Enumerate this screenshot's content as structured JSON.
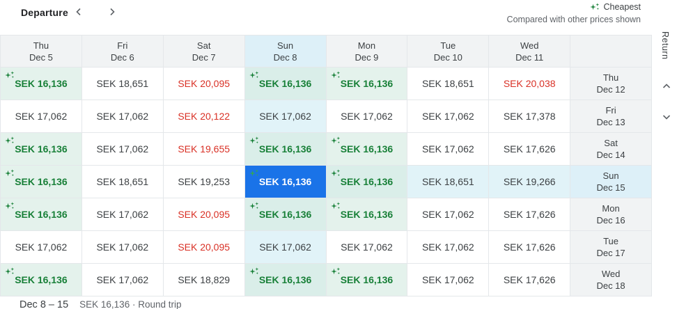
{
  "colors": {
    "accent_blue": "#1a73e8",
    "cheapest_green_text": "#188038",
    "high_red_text": "#d93025",
    "cheapest_bg": "#e4f2ec",
    "highlight_bg": "#e1f3f8",
    "header_bg": "#f1f3f4"
  },
  "toolbar": {
    "departure_label": "Departure"
  },
  "legend": {
    "cheapest_label": "Cheapest",
    "note": "Compared with other prices shown"
  },
  "return_axis": {
    "label": "Return"
  },
  "columns": [
    {
      "day": "Thu",
      "date": "Dec 5",
      "selected": false
    },
    {
      "day": "Fri",
      "date": "Dec 6",
      "selected": false
    },
    {
      "day": "Sat",
      "date": "Dec 7",
      "selected": false
    },
    {
      "day": "Sun",
      "date": "Dec 8",
      "selected": true
    },
    {
      "day": "Mon",
      "date": "Dec 9",
      "selected": false
    },
    {
      "day": "Tue",
      "date": "Dec 10",
      "selected": false
    },
    {
      "day": "Wed",
      "date": "Dec 11",
      "selected": false
    }
  ],
  "rows": [
    {
      "day": "Thu",
      "date": "Dec 12",
      "selected": false
    },
    {
      "day": "Fri",
      "date": "Dec 13",
      "selected": false
    },
    {
      "day": "Sat",
      "date": "Dec 14",
      "selected": false
    },
    {
      "day": "Sun",
      "date": "Dec 15",
      "selected": true
    },
    {
      "day": "Mon",
      "date": "Dec 16",
      "selected": false
    },
    {
      "day": "Tue",
      "date": "Dec 17",
      "selected": false
    },
    {
      "day": "Wed",
      "date": "Dec 18",
      "selected": false
    }
  ],
  "grid": [
    [
      {
        "price": "SEK 16,136",
        "style": "cheapest",
        "highlight": false
      },
      {
        "price": "SEK 18,651",
        "style": "normal",
        "highlight": false
      },
      {
        "price": "SEK 20,095",
        "style": "high",
        "highlight": false
      },
      {
        "price": "SEK 16,136",
        "style": "cheapest",
        "highlight": true
      },
      {
        "price": "SEK 16,136",
        "style": "cheapest",
        "highlight": false
      },
      {
        "price": "SEK 18,651",
        "style": "normal",
        "highlight": false
      },
      {
        "price": "SEK 20,038",
        "style": "high",
        "highlight": false
      }
    ],
    [
      {
        "price": "SEK 17,062",
        "style": "normal",
        "highlight": false
      },
      {
        "price": "SEK 17,062",
        "style": "normal",
        "highlight": false
      },
      {
        "price": "SEK 20,122",
        "style": "high",
        "highlight": false
      },
      {
        "price": "SEK 17,062",
        "style": "normal",
        "highlight": true
      },
      {
        "price": "SEK 17,062",
        "style": "normal",
        "highlight": false
      },
      {
        "price": "SEK 17,062",
        "style": "normal",
        "highlight": false
      },
      {
        "price": "SEK 17,378",
        "style": "normal",
        "highlight": false
      }
    ],
    [
      {
        "price": "SEK 16,136",
        "style": "cheapest",
        "highlight": false
      },
      {
        "price": "SEK 17,062",
        "style": "normal",
        "highlight": false
      },
      {
        "price": "SEK 19,655",
        "style": "high",
        "highlight": false
      },
      {
        "price": "SEK 16,136",
        "style": "cheapest",
        "highlight": true
      },
      {
        "price": "SEK 16,136",
        "style": "cheapest",
        "highlight": false
      },
      {
        "price": "SEK 17,062",
        "style": "normal",
        "highlight": false
      },
      {
        "price": "SEK 17,626",
        "style": "normal",
        "highlight": false
      }
    ],
    [
      {
        "price": "SEK 16,136",
        "style": "cheapest",
        "highlight": false
      },
      {
        "price": "SEK 18,651",
        "style": "normal",
        "highlight": false
      },
      {
        "price": "SEK 19,253",
        "style": "normal",
        "highlight": false
      },
      {
        "price": "SEK 16,136",
        "style": "selected",
        "highlight": false
      },
      {
        "price": "SEK 16,136",
        "style": "cheapest",
        "highlight": true
      },
      {
        "price": "SEK 18,651",
        "style": "normal",
        "highlight": true
      },
      {
        "price": "SEK 19,266",
        "style": "normal",
        "highlight": true
      }
    ],
    [
      {
        "price": "SEK 16,136",
        "style": "cheapest",
        "highlight": false
      },
      {
        "price": "SEK 17,062",
        "style": "normal",
        "highlight": false
      },
      {
        "price": "SEK 20,095",
        "style": "high",
        "highlight": false
      },
      {
        "price": "SEK 16,136",
        "style": "cheapest",
        "highlight": true
      },
      {
        "price": "SEK 16,136",
        "style": "cheapest",
        "highlight": false
      },
      {
        "price": "SEK 17,062",
        "style": "normal",
        "highlight": false
      },
      {
        "price": "SEK 17,626",
        "style": "normal",
        "highlight": false
      }
    ],
    [
      {
        "price": "SEK 17,062",
        "style": "normal",
        "highlight": false
      },
      {
        "price": "SEK 17,062",
        "style": "normal",
        "highlight": false
      },
      {
        "price": "SEK 20,095",
        "style": "high",
        "highlight": false
      },
      {
        "price": "SEK 17,062",
        "style": "normal",
        "highlight": true
      },
      {
        "price": "SEK 17,062",
        "style": "normal",
        "highlight": false
      },
      {
        "price": "SEK 17,062",
        "style": "normal",
        "highlight": false
      },
      {
        "price": "SEK 17,626",
        "style": "normal",
        "highlight": false
      }
    ],
    [
      {
        "price": "SEK 16,136",
        "style": "cheapest",
        "highlight": false
      },
      {
        "price": "SEK 17,062",
        "style": "normal",
        "highlight": false
      },
      {
        "price": "SEK 18,829",
        "style": "normal",
        "highlight": false
      },
      {
        "price": "SEK 16,136",
        "style": "cheapest",
        "highlight": true
      },
      {
        "price": "SEK 16,136",
        "style": "cheapest",
        "highlight": false
      },
      {
        "price": "SEK 17,062",
        "style": "normal",
        "highlight": false
      },
      {
        "price": "SEK 17,626",
        "style": "normal",
        "highlight": false
      }
    ]
  ],
  "footer": {
    "dates": "Dec 8 – 15",
    "summary": "SEK 16,136 · Round trip"
  }
}
